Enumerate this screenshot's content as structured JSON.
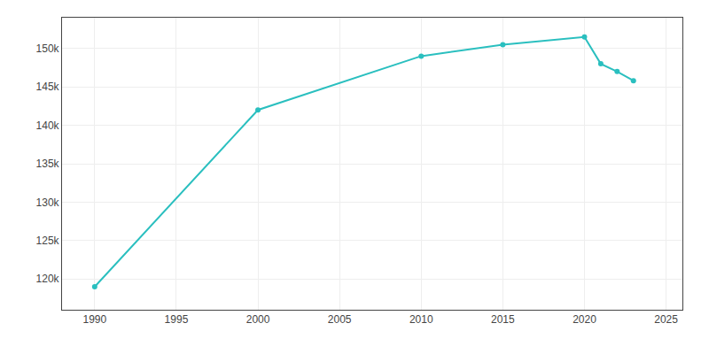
{
  "chart_data": {
    "type": "line",
    "x": [
      1990,
      2000,
      2010,
      2015,
      2020,
      2021,
      2022,
      2023
    ],
    "values": [
      119000,
      142000,
      149000,
      150500,
      151500,
      148000,
      147000,
      145800
    ],
    "color": "#2abfbf",
    "marker": "circle",
    "xlim": [
      1988,
      2026
    ],
    "ylim": [
      116000,
      154000
    ],
    "xticks": [
      1990,
      1995,
      2000,
      2005,
      2010,
      2015,
      2020,
      2025
    ],
    "yticks": [
      {
        "value": 120000,
        "label": "120k"
      },
      {
        "value": 125000,
        "label": "125k"
      },
      {
        "value": 130000,
        "label": "130k"
      },
      {
        "value": 135000,
        "label": "135k"
      },
      {
        "value": 140000,
        "label": "140k"
      },
      {
        "value": 145000,
        "label": "145k"
      },
      {
        "value": 150000,
        "label": "150k"
      }
    ],
    "grid": true
  }
}
